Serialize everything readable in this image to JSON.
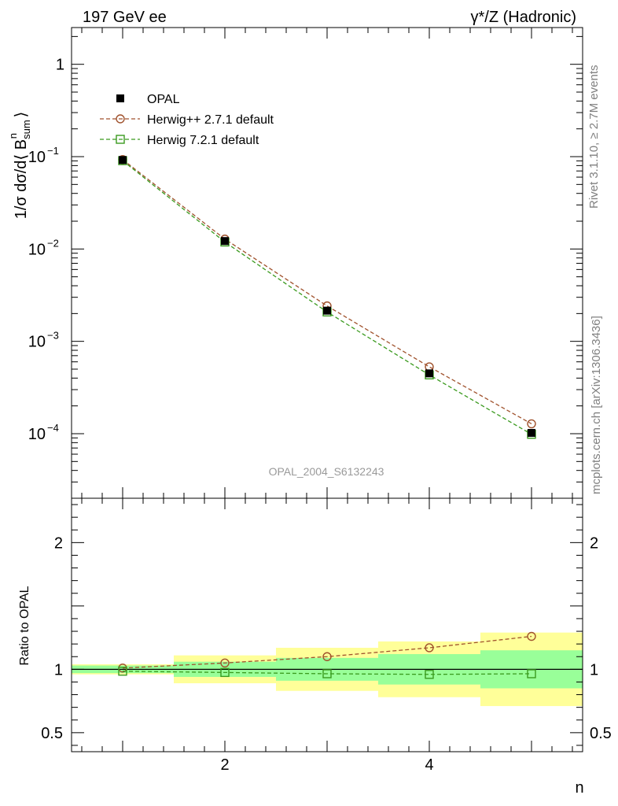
{
  "header": {
    "left_title": "197 GeV ee",
    "right_title": "γ*/Z (Hadronic)"
  },
  "side_labels": {
    "rivet": "Rivet 3.1.10, ≥ 2.7M events",
    "mcplots": "mcplots.cern.ch [arXiv:1306.3436]"
  },
  "watermark": "OPAL_2004_S6132243",
  "colors": {
    "data": "#000000",
    "herwigpp": "#a0522d",
    "herwig7": "#3a9a1e",
    "band_inner": "#99ff99",
    "band_outer": "#ffff99"
  },
  "chart_data": [
    {
      "type": "line",
      "panel": "main",
      "ylabel": "1/σ dσ/d⟨ B",
      "ylabel_sup": "n",
      "ylabel_sub": "sum",
      "ylabel_close": " ⟩",
      "yscale": "log",
      "xlim": [
        0.5,
        5.5
      ],
      "ylim": [
        2e-05,
        2.5
      ],
      "yticks": [
        {
          "label": "1",
          "value": 1
        },
        {
          "base": "10",
          "exp": "−1",
          "value": 0.1
        },
        {
          "base": "10",
          "exp": "−2",
          "value": 0.01
        },
        {
          "base": "10",
          "exp": "−3",
          "value": 0.001
        },
        {
          "base": "10",
          "exp": "−4",
          "value": 0.0001
        }
      ],
      "legend_position": "top-left",
      "x": [
        1,
        2,
        3,
        4,
        5
      ],
      "series": [
        {
          "name": "OPAL",
          "style": "data",
          "marker": "filled-square",
          "values": [
            0.092,
            0.0122,
            0.00215,
            0.00045,
            0.000102
          ]
        },
        {
          "name": "Herwig++ 2.7.1 default",
          "style": "herwigpp",
          "marker": "open-circle",
          "values": [
            0.093,
            0.0128,
            0.00242,
            0.00053,
            0.000128
          ]
        },
        {
          "name": "Herwig 7.2.1 default",
          "style": "herwig7",
          "marker": "open-square",
          "values": [
            0.0905,
            0.0119,
            0.00208,
            0.000433,
            9.85e-05
          ]
        }
      ]
    },
    {
      "type": "line",
      "panel": "ratio",
      "ylabel": "Ratio to OPAL",
      "xlabel": "n",
      "xlim": [
        0.5,
        5.5
      ],
      "ylim": [
        0.35,
        2.35
      ],
      "xticks": [
        2,
        4
      ],
      "yticks": [
        0.5,
        1,
        2
      ],
      "x": [
        1,
        2,
        3,
        4,
        5
      ],
      "bands": {
        "edges": [
          0.5,
          1.5,
          2.5,
          3.5,
          4.5,
          5.5
        ],
        "inner": [
          0.03,
          0.06,
          0.09,
          0.12,
          0.15
        ],
        "outer": [
          0.04,
          0.11,
          0.17,
          0.22,
          0.29
        ]
      },
      "series": [
        {
          "name": "Herwig++ 2.7.1 default",
          "style": "herwigpp",
          "marker": "open-circle",
          "values": [
            1.01,
            1.05,
            1.1,
            1.17,
            1.26
          ]
        },
        {
          "name": "Herwig 7.2.1 default",
          "style": "herwig7",
          "marker": "open-square",
          "values": [
            0.985,
            0.975,
            0.965,
            0.96,
            0.965
          ]
        }
      ]
    }
  ]
}
